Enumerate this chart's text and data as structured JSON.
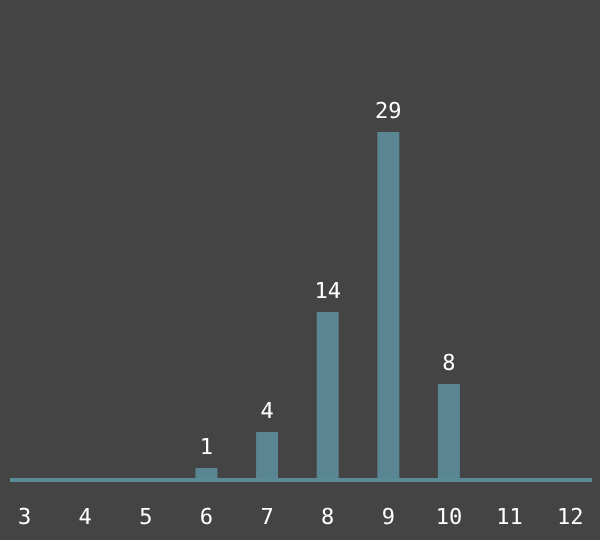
{
  "chart_data": {
    "type": "bar",
    "x": [
      6,
      7,
      8,
      9,
      10
    ],
    "values": [
      1,
      4,
      14,
      29,
      8
    ],
    "color": "#5a8592",
    "data_labels": true,
    "xlim": [
      2.76,
      12.36
    ],
    "xticks": [
      3,
      4,
      5,
      6,
      7,
      8,
      9,
      10,
      11,
      12
    ],
    "grid": false
  }
}
